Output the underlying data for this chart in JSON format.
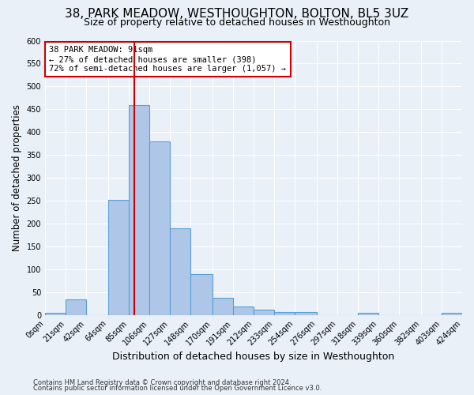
{
  "title": "38, PARK MEADOW, WESTHOUGHTON, BOLTON, BL5 3UZ",
  "subtitle": "Size of property relative to detached houses in Westhoughton",
  "xlabel": "Distribution of detached houses by size in Westhoughton",
  "ylabel": "Number of detached properties",
  "footnote1": "Contains HM Land Registry data © Crown copyright and database right 2024.",
  "footnote2": "Contains public sector information licensed under the Open Government Licence v3.0.",
  "bin_edges": [
    0,
    21,
    42,
    64,
    85,
    106,
    127,
    148,
    170,
    191,
    212,
    233,
    254,
    276,
    297,
    318,
    339,
    360,
    382,
    403,
    424
  ],
  "bin_labels": [
    "0sqm",
    "21sqm",
    "42sqm",
    "64sqm",
    "85sqm",
    "106sqm",
    "127sqm",
    "148sqm",
    "170sqm",
    "191sqm",
    "212sqm",
    "233sqm",
    "254sqm",
    "276sqm",
    "297sqm",
    "318sqm",
    "339sqm",
    "360sqm",
    "382sqm",
    "403sqm",
    "424sqm"
  ],
  "counts": [
    5,
    35,
    0,
    253,
    460,
    380,
    190,
    90,
    38,
    20,
    13,
    8,
    7,
    0,
    0,
    6,
    0,
    0,
    0,
    5
  ],
  "bar_color": "#aec6e8",
  "bar_edge_color": "#5a9fd4",
  "property_size": 91,
  "vline_color": "#cc0000",
  "annotation_text": "38 PARK MEADOW: 91sqm\n← 27% of detached houses are smaller (398)\n72% of semi-detached houses are larger (1,057) →",
  "annotation_box_color": "#ffffff",
  "annotation_box_edge": "#cc0000",
  "ylim": [
    0,
    600
  ],
  "yticks": [
    0,
    50,
    100,
    150,
    200,
    250,
    300,
    350,
    400,
    450,
    500,
    550,
    600
  ],
  "background_color": "#eaf0f8",
  "plot_background": "#eaf0f8",
  "grid_color": "#ffffff",
  "title_fontsize": 11,
  "subtitle_fontsize": 9,
  "tick_fontsize": 7,
  "ylabel_fontsize": 8.5,
  "xlabel_fontsize": 9
}
